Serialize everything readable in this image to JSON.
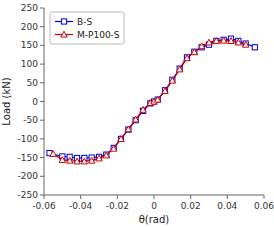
{
  "chart_data": {
    "type": "line",
    "title": "",
    "xlabel": "θ(rad)",
    "ylabel": "Load (kN)",
    "xlim": [
      -0.06,
      0.06
    ],
    "ylim": [
      -250,
      250
    ],
    "xticks": [
      -0.06,
      -0.04,
      -0.02,
      0,
      0.02,
      0.04,
      0.06
    ],
    "yticks": [
      -250,
      -200,
      -150,
      -100,
      -50,
      0,
      50,
      100,
      150,
      200,
      250
    ],
    "grid": false,
    "legend": "upper left",
    "series": [
      {
        "name": "B-S",
        "color": "#0000cc",
        "marker": "square",
        "x": [
          -0.057,
          -0.05,
          -0.046,
          -0.042,
          -0.038,
          -0.034,
          -0.03,
          -0.026,
          -0.022,
          -0.018,
          -0.014,
          -0.01,
          -0.006,
          -0.002,
          0.0,
          0.002,
          0.006,
          0.01,
          0.014,
          0.018,
          0.022,
          0.026,
          0.03,
          0.034,
          0.038,
          0.042,
          0.046,
          0.05,
          0.055
        ],
        "values": [
          -138,
          -147,
          -148,
          -151,
          -151,
          -150,
          -148,
          -142,
          -124,
          -100,
          -75,
          -50,
          -25,
          -5,
          0,
          5,
          30,
          58,
          88,
          118,
          133,
          145,
          152,
          162,
          165,
          168,
          162,
          155,
          145
        ]
      },
      {
        "name": "M-P100-S",
        "color": "#cc0000",
        "marker": "triangle",
        "x": [
          -0.055,
          -0.05,
          -0.046,
          -0.042,
          -0.038,
          -0.034,
          -0.03,
          -0.026,
          -0.022,
          -0.018,
          -0.014,
          -0.01,
          -0.006,
          -0.002,
          0.0,
          0.002,
          0.006,
          0.01,
          0.014,
          0.018,
          0.022,
          0.026,
          0.03,
          0.034,
          0.038,
          0.042,
          0.046,
          0.05
        ],
        "values": [
          -140,
          -156,
          -158,
          -160,
          -160,
          -158,
          -152,
          -144,
          -126,
          -100,
          -74,
          -48,
          -22,
          -4,
          0,
          5,
          28,
          56,
          86,
          116,
          132,
          148,
          158,
          162,
          163,
          162,
          158,
          152
        ]
      }
    ]
  }
}
